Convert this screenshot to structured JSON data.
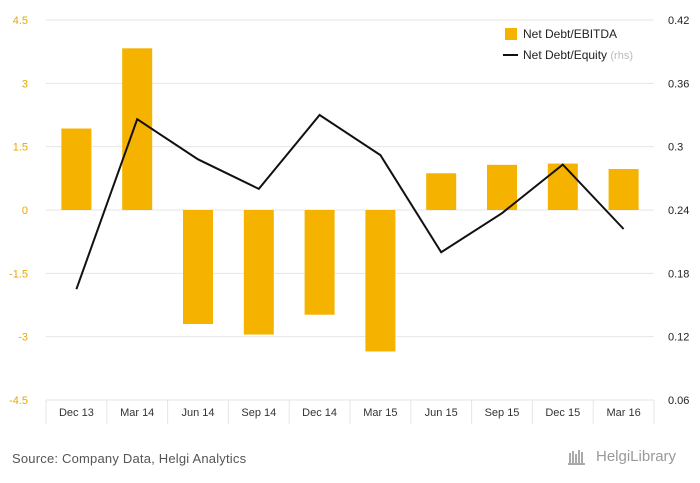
{
  "chart_data": {
    "type": "bar+line",
    "categories": [
      "Dec 13",
      "Mar 14",
      "Jun 14",
      "Sep 14",
      "Dec 14",
      "Mar 15",
      "Jun 15",
      "Sep 15",
      "Dec 15",
      "Mar 16"
    ],
    "series": [
      {
        "name": "Net Debt/EBITDA",
        "type": "bar",
        "axis": "left",
        "values": [
          1.93,
          3.83,
          -2.7,
          -2.95,
          -2.48,
          -3.35,
          0.87,
          1.07,
          1.1,
          0.97
        ]
      },
      {
        "name": "Net Debt/Equity",
        "rhs_label": "(rhs)",
        "type": "line",
        "axis": "right",
        "values": [
          0.165,
          0.326,
          0.288,
          0.26,
          0.33,
          0.292,
          0.2,
          0.237,
          0.283,
          0.222
        ]
      }
    ],
    "left_axis": {
      "ylim": [
        -4.5,
        4.5
      ],
      "ticks": [
        "4.5",
        "3",
        "1.5",
        "0",
        "-1.5",
        "-3",
        "-4.5"
      ],
      "tick_values": [
        4.5,
        3,
        1.5,
        0,
        -1.5,
        -3,
        -4.5
      ]
    },
    "right_axis": {
      "ylim": [
        0.06,
        0.42
      ],
      "ticks": [
        "0.42",
        "0.36",
        "0.3",
        "0.24",
        "0.18",
        "0.12",
        "0.06"
      ],
      "tick_values": [
        0.42,
        0.36,
        0.3,
        0.24,
        0.18,
        0.12,
        0.06
      ]
    },
    "legend_position": "top-right",
    "colors": {
      "bar": "#f5b300",
      "line": "#111111",
      "left_tick": "#e6a800",
      "right_tick": "#222222",
      "grid": "#e6e6e6",
      "rhs": "#bbbbbb"
    }
  },
  "footer": {
    "source": "Source: Company Data, Helgi Analytics",
    "brand": "HelgiLibrary"
  }
}
